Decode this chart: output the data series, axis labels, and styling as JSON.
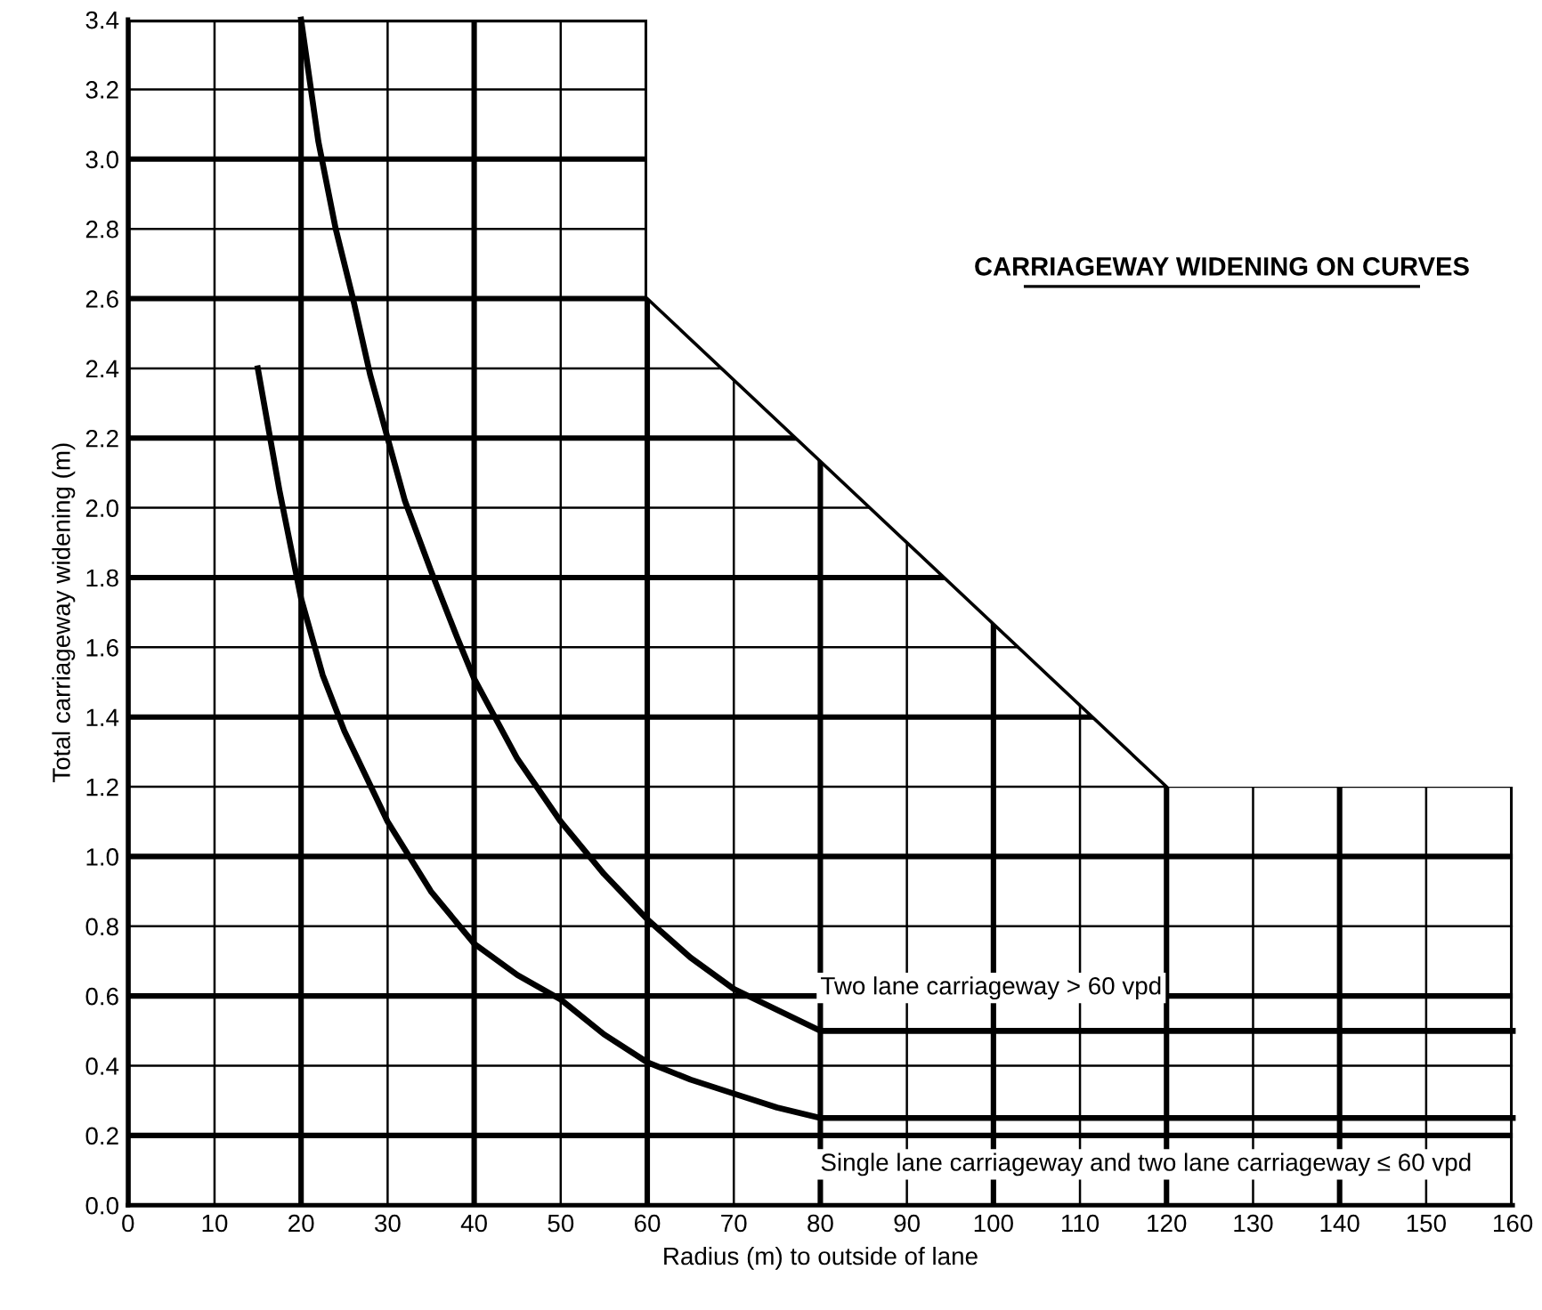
{
  "chart_data": {
    "type": "line",
    "title": "CARRIAGEWAY WIDENING ON CURVES",
    "xlabel": "Radius (m) to outside of lane",
    "ylabel": "Total carriageway widening (m)",
    "xlim": [
      0,
      160
    ],
    "ylim": [
      0,
      3.4
    ],
    "xticks": [
      0,
      10,
      20,
      30,
      40,
      50,
      60,
      70,
      80,
      90,
      100,
      110,
      120,
      130,
      140,
      150,
      160
    ],
    "yticks": [
      {
        "value": 0,
        "label": "0.0"
      },
      0.2,
      0.4,
      0.6,
      0.8,
      {
        "value": 1,
        "label": "1.0"
      },
      1.2,
      1.4,
      1.6,
      1.8,
      {
        "value": 2,
        "label": "2.0"
      },
      2.2,
      2.4,
      2.6,
      2.8,
      {
        "value": 3,
        "label": "3.0"
      },
      3.2,
      3.4
    ],
    "grid": true,
    "legend": false,
    "marker": "none",
    "line_style": "solid",
    "series": [
      {
        "name": "Two lane carriageway > 60 vpd",
        "color": "#000000",
        "x": [
          20,
          22,
          24,
          26,
          28,
          30,
          32,
          35,
          38,
          40,
          45,
          50,
          55,
          60,
          65,
          70,
          75,
          80,
          160
        ],
        "values": [
          3.4,
          3.05,
          2.8,
          2.6,
          2.38,
          2.2,
          2.02,
          1.82,
          1.63,
          1.51,
          1.28,
          1.1,
          0.95,
          0.82,
          0.71,
          0.62,
          0.56,
          0.5,
          0.5
        ]
      },
      {
        "name": "Single lane carriageway and two lane carriageway ≤ 60 vpd",
        "color": "#000000",
        "x": [
          15,
          17.5,
          20,
          22.5,
          25,
          30,
          35,
          40,
          45,
          50,
          55,
          60,
          65,
          70,
          75,
          80,
          160
        ],
        "values": [
          2.4,
          2.05,
          1.74,
          1.52,
          1.36,
          1.1,
          0.9,
          0.75,
          0.66,
          0.59,
          0.49,
          0.41,
          0.36,
          0.32,
          0.28,
          0.25,
          0.25
        ]
      },
      {
        "color": "#000000",
        "x": [
          60,
          120
        ],
        "values": [
          2.6,
          1.2
        ]
      }
    ]
  }
}
